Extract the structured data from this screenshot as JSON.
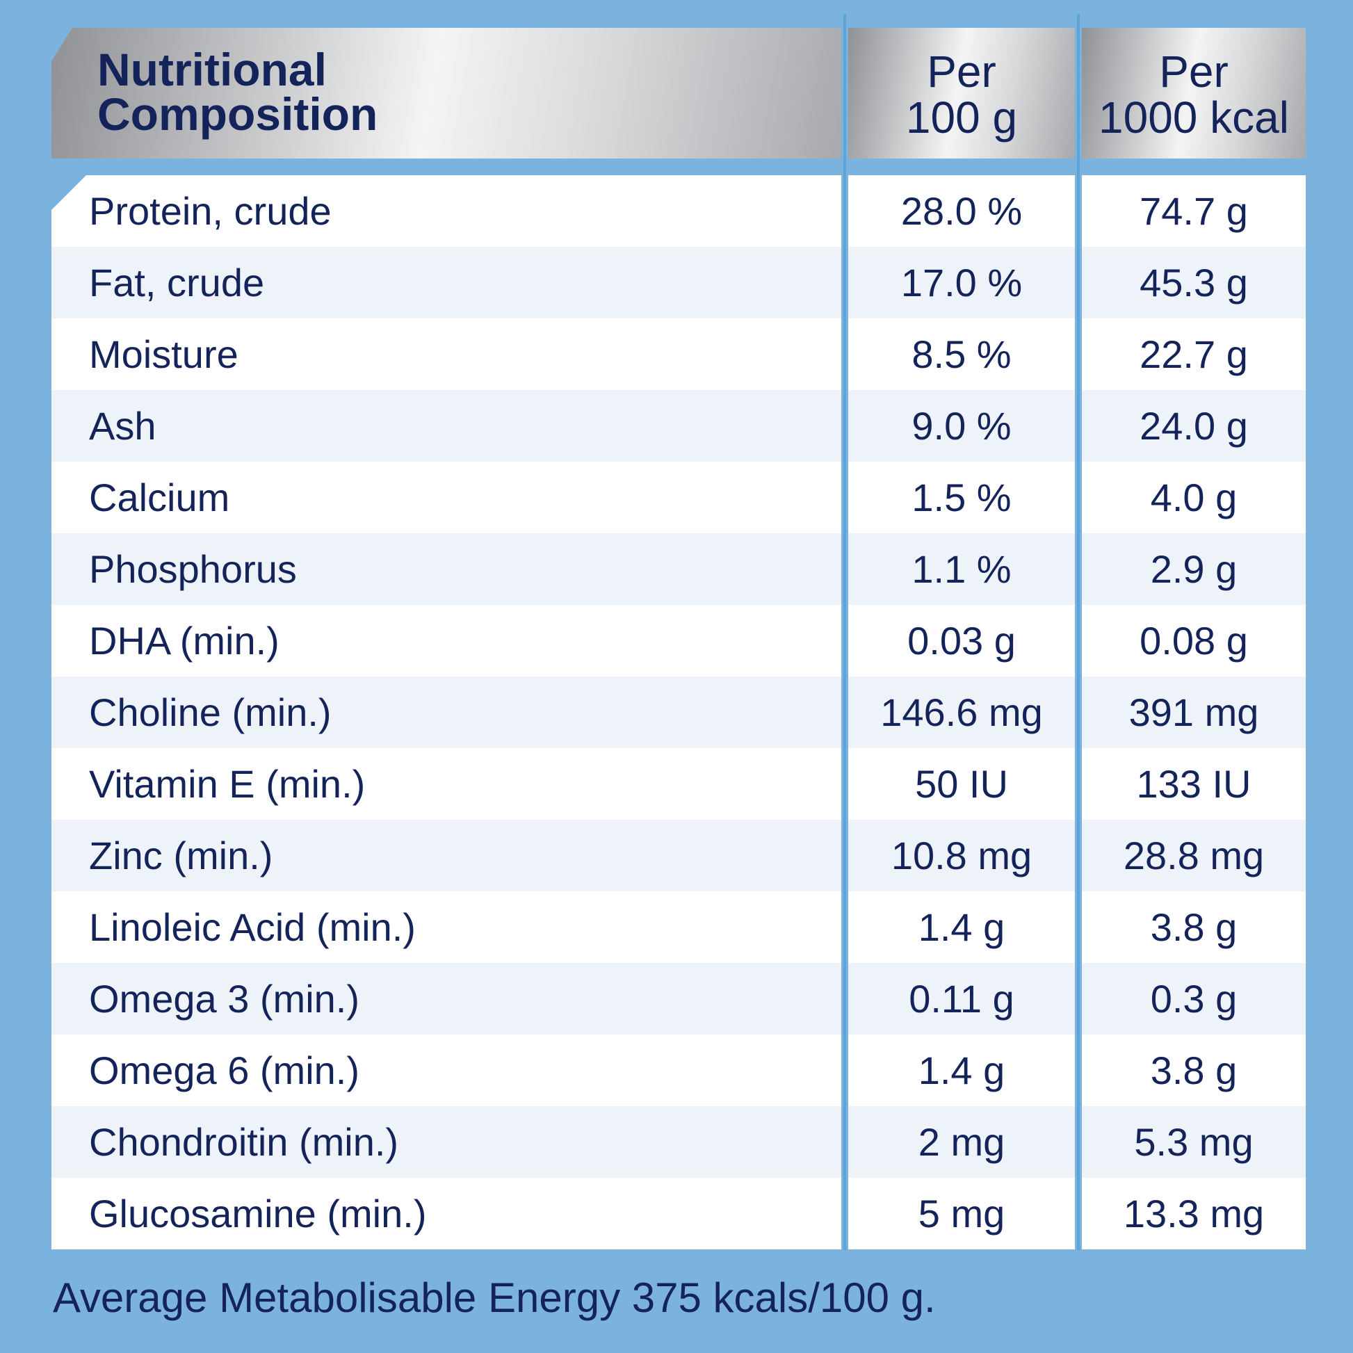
{
  "header": {
    "title_line1": "Nutritional",
    "title_line2": "Composition",
    "col1_line1": "Per",
    "col1_line2": "100 g",
    "col2_line1": "Per",
    "col2_line2": "1000 kcal"
  },
  "rows": [
    {
      "name": "Protein, crude",
      "per100g": "28.0 %",
      "per1000kcal": "74.7 g"
    },
    {
      "name": "Fat, crude",
      "per100g": "17.0 %",
      "per1000kcal": "45.3 g"
    },
    {
      "name": "Moisture",
      "per100g": "8.5 %",
      "per1000kcal": "22.7 g"
    },
    {
      "name": "Ash",
      "per100g": "9.0 %",
      "per1000kcal": "24.0 g"
    },
    {
      "name": "Calcium",
      "per100g": "1.5 %",
      "per1000kcal": "4.0 g"
    },
    {
      "name": "Phosphorus",
      "per100g": "1.1 %",
      "per1000kcal": "2.9 g"
    },
    {
      "name": "DHA (min.)",
      "per100g": "0.03 g",
      "per1000kcal": "0.08 g"
    },
    {
      "name": "Choline (min.)",
      "per100g": "146.6 mg",
      "per1000kcal": "391 mg"
    },
    {
      "name": "Vitamin E (min.)",
      "per100g": "50 IU",
      "per1000kcal": "133 IU"
    },
    {
      "name": "Zinc (min.)",
      "per100g": "10.8 mg",
      "per1000kcal": "28.8 mg"
    },
    {
      "name": "Linoleic Acid (min.)",
      "per100g": "1.4 g",
      "per1000kcal": "3.8 g"
    },
    {
      "name": "Omega 3 (min.)",
      "per100g": "0.11 g",
      "per1000kcal": "0.3 g"
    },
    {
      "name": "Omega 6 (min.)",
      "per100g": "1.4 g",
      "per1000kcal": "3.8 g"
    },
    {
      "name": "Chondroitin (min.)",
      "per100g": "2 mg",
      "per1000kcal": "5.3 mg"
    },
    {
      "name": "Glucosamine (min.)",
      "per100g": "5 mg",
      "per1000kcal": "13.3 mg"
    }
  ],
  "footer": "Average Metabolisable Energy 375 kcals/100 g.",
  "colors": {
    "background": "#7cb3de",
    "text": "#14245a",
    "row_alt": "#eef3fa",
    "row": "#ffffff"
  }
}
